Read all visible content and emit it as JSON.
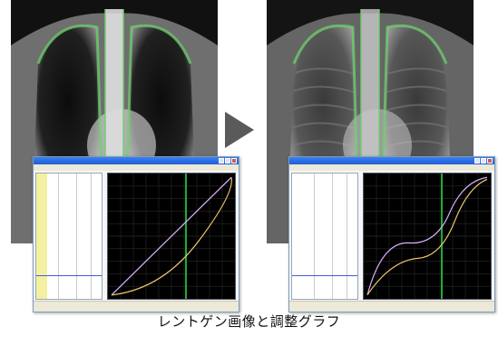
{
  "caption": "レントゲン画像と調整グラフ",
  "left_window": {
    "title": "",
    "status_left": "",
    "status_right": ""
  },
  "right_window": {
    "title": "",
    "status_left": "",
    "status_right": ""
  },
  "colors": {
    "curve": "#e8c06a",
    "curve_alt": "#d8b0ff",
    "marker": "#22aa33",
    "grid": "#2a2a2a"
  }
}
